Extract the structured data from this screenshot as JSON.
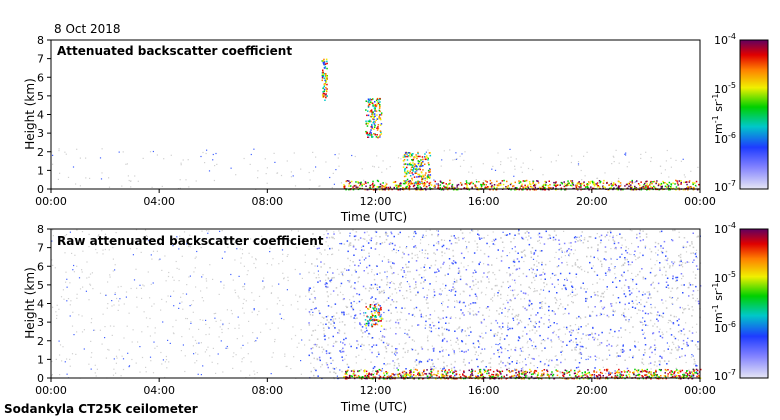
{
  "date_label": "8 Oct 2018",
  "footer": "Sodankyla CT25K ceilometer",
  "chart_data": [
    {
      "type": "heatmap",
      "title": "Attenuated backscatter coefficient",
      "xlabel": "Time (UTC)",
      "ylabel": "Height (km)",
      "xlim": [
        0,
        24
      ],
      "ylim": [
        0,
        8
      ],
      "x_ticks": [
        "00:00",
        "04:00",
        "08:00",
        "12:00",
        "16:00",
        "20:00",
        "00:00"
      ],
      "y_ticks": [
        "0",
        "1",
        "2",
        "3",
        "4",
        "5",
        "6",
        "7",
        "8"
      ],
      "colorbar": {
        "scale": "log",
        "range": [
          1e-07,
          0.0001
        ],
        "ticks": [
          "10-7",
          "10-6",
          "10-5",
          "10-4"
        ],
        "unit": "m-1 sr-1"
      },
      "features": [
        {
          "name": "boundary layer aerosol",
          "t_start": 10.8,
          "t_end": 24,
          "height_km": [
            0,
            0.5
          ],
          "level": "high"
        },
        {
          "name": "cloud 12:00",
          "t_start": 11.6,
          "t_end": 12.2,
          "height_km": [
            2.8,
            4.9
          ],
          "level": "mid"
        },
        {
          "name": "cloud 10:00",
          "t_start": 10.0,
          "t_end": 10.2,
          "height_km": [
            4.8,
            7.0
          ],
          "level": "mid"
        },
        {
          "name": "low cloud 13:00",
          "t_start": 13.0,
          "t_end": 14.0,
          "height_km": [
            0.3,
            2.0
          ],
          "level": "mid"
        }
      ]
    },
    {
      "type": "heatmap",
      "title": "Raw attenuated backscatter coefficient",
      "xlabel": "Time (UTC)",
      "ylabel": "Height (km)",
      "xlim": [
        0,
        24
      ],
      "ylim": [
        0,
        8
      ],
      "x_ticks": [
        "00:00",
        "04:00",
        "08:00",
        "12:00",
        "16:00",
        "20:00",
        "00:00"
      ],
      "y_ticks": [
        "0",
        "1",
        "2",
        "3",
        "4",
        "5",
        "6",
        "7",
        "8"
      ],
      "colorbar": {
        "scale": "log",
        "range": [
          1e-07,
          0.0001
        ],
        "ticks": [
          "10-7",
          "10-6",
          "10-5",
          "10-4"
        ],
        "unit": "m-1 sr-1"
      },
      "features": [
        {
          "name": "noise band",
          "t_start": 9.5,
          "t_end": 24,
          "height_km": [
            0,
            8
          ],
          "level": "low"
        },
        {
          "name": "boundary layer aerosol",
          "t_start": 10.8,
          "t_end": 24,
          "height_km": [
            0,
            0.5
          ],
          "level": "high"
        },
        {
          "name": "cloud 12:00",
          "t_start": 11.6,
          "t_end": 12.2,
          "height_km": [
            2.8,
            4.0
          ],
          "level": "mid"
        }
      ]
    }
  ]
}
